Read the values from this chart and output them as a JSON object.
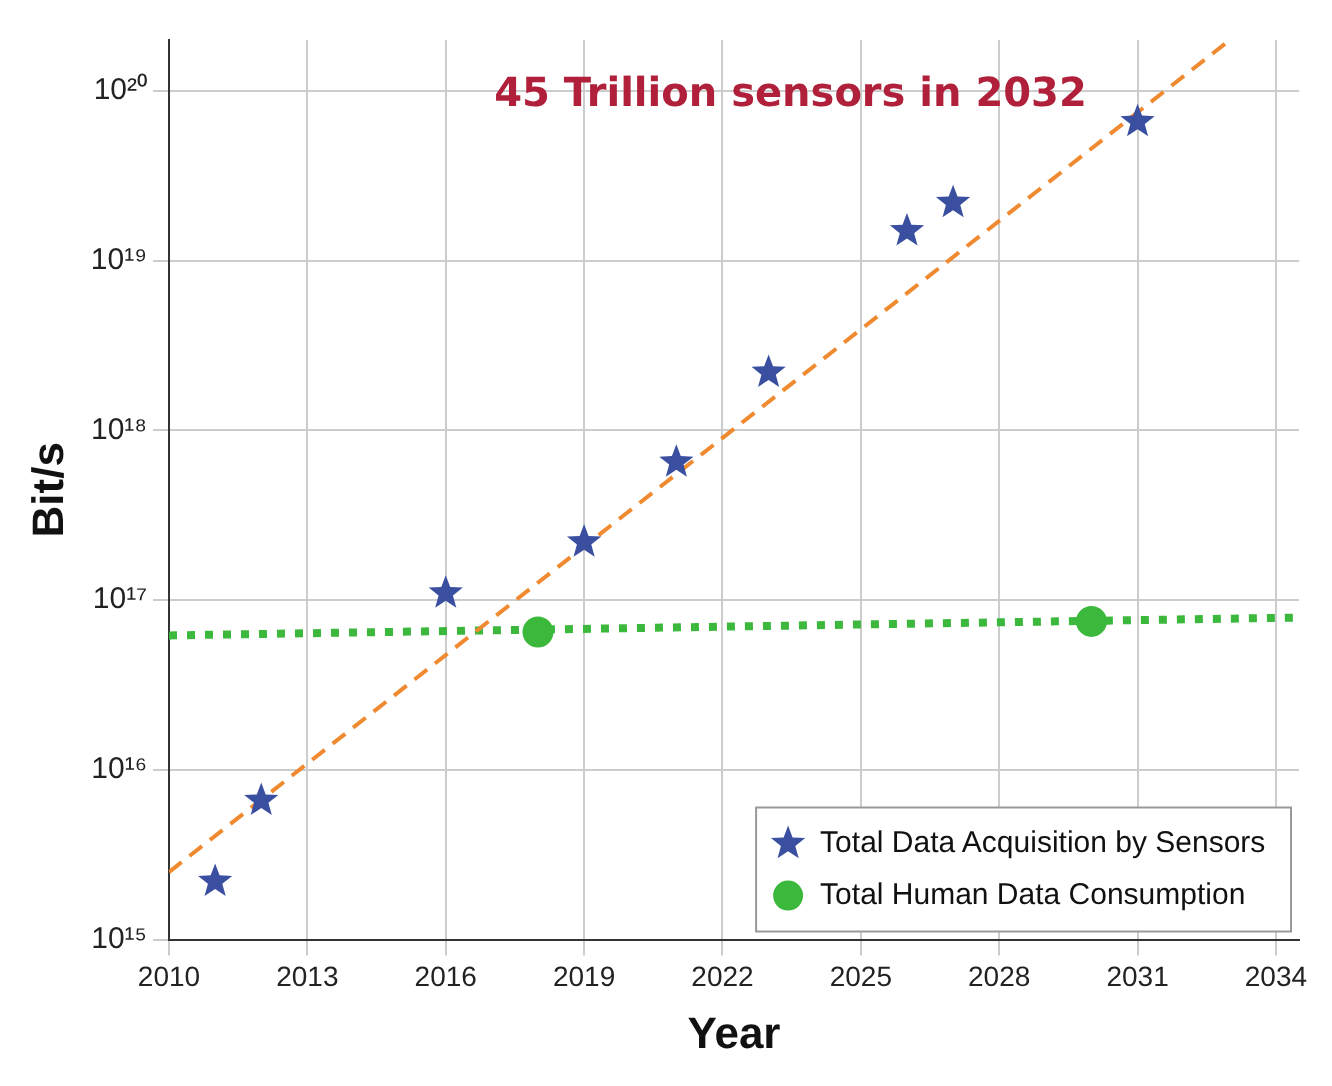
{
  "chart_data": {
    "type": "scatter",
    "title": "45 Trillion sensors in 2032",
    "xlabel": "Year",
    "ylabel": "Bit/s",
    "log": "y",
    "grid": true,
    "legend": "bottom right",
    "xlim": [
      2010,
      2034.5
    ],
    "xticks": [
      2010,
      2013,
      2016,
      2019,
      2022,
      2025,
      2028,
      2031,
      2034
    ],
    "ylim": [
      1000000000000000.0,
      2e+20
    ],
    "yticks": [
      {
        "value": 1000000000000000.0,
        "label": "10¹⁵"
      },
      {
        "value": 1e+16,
        "label": "10¹⁶"
      },
      {
        "value": 1e+17,
        "label": "10¹⁷"
      },
      {
        "value": 1e+18,
        "label": "10¹⁸"
      },
      {
        "value": 1e+19,
        "label": "10¹⁹"
      },
      {
        "value": 1e+20,
        "label": "10²⁰"
      }
    ],
    "series": [
      {
        "type": "line",
        "color": "#f08a30",
        "line_style": "dashed",
        "marker": "none",
        "x": [
          2010,
          2033
        ],
        "values": [
          2500000000000000.0,
          2e+20
        ]
      },
      {
        "type": "line",
        "color": "#3cb83c",
        "line_style": "dotted",
        "marker": "none",
        "x": [
          2010,
          2034.5
        ],
        "values": [
          6.2e+16,
          7.9e+16
        ]
      },
      {
        "type": "scatter",
        "name": "Total Data Acquisition by Sensors",
        "color": "#3a4fa0",
        "marker": "star",
        "x": [
          2011,
          2012,
          2016,
          2019,
          2021,
          2023,
          2026,
          2027,
          2031
        ],
        "values": [
          2200000000000000.0,
          6600000000000000.0,
          1.1e+17,
          2.2e+17,
          6.5e+17,
          2.2e+18,
          1.5e+19,
          2.2e+19,
          6.6e+19
        ]
      },
      {
        "type": "scatter",
        "name": "Total Human Data Consumption",
        "color": "#3cb83c",
        "marker": "circle",
        "x": [
          2018,
          2030
        ],
        "values": [
          6.5e+16,
          7.5e+16
        ]
      }
    ]
  }
}
